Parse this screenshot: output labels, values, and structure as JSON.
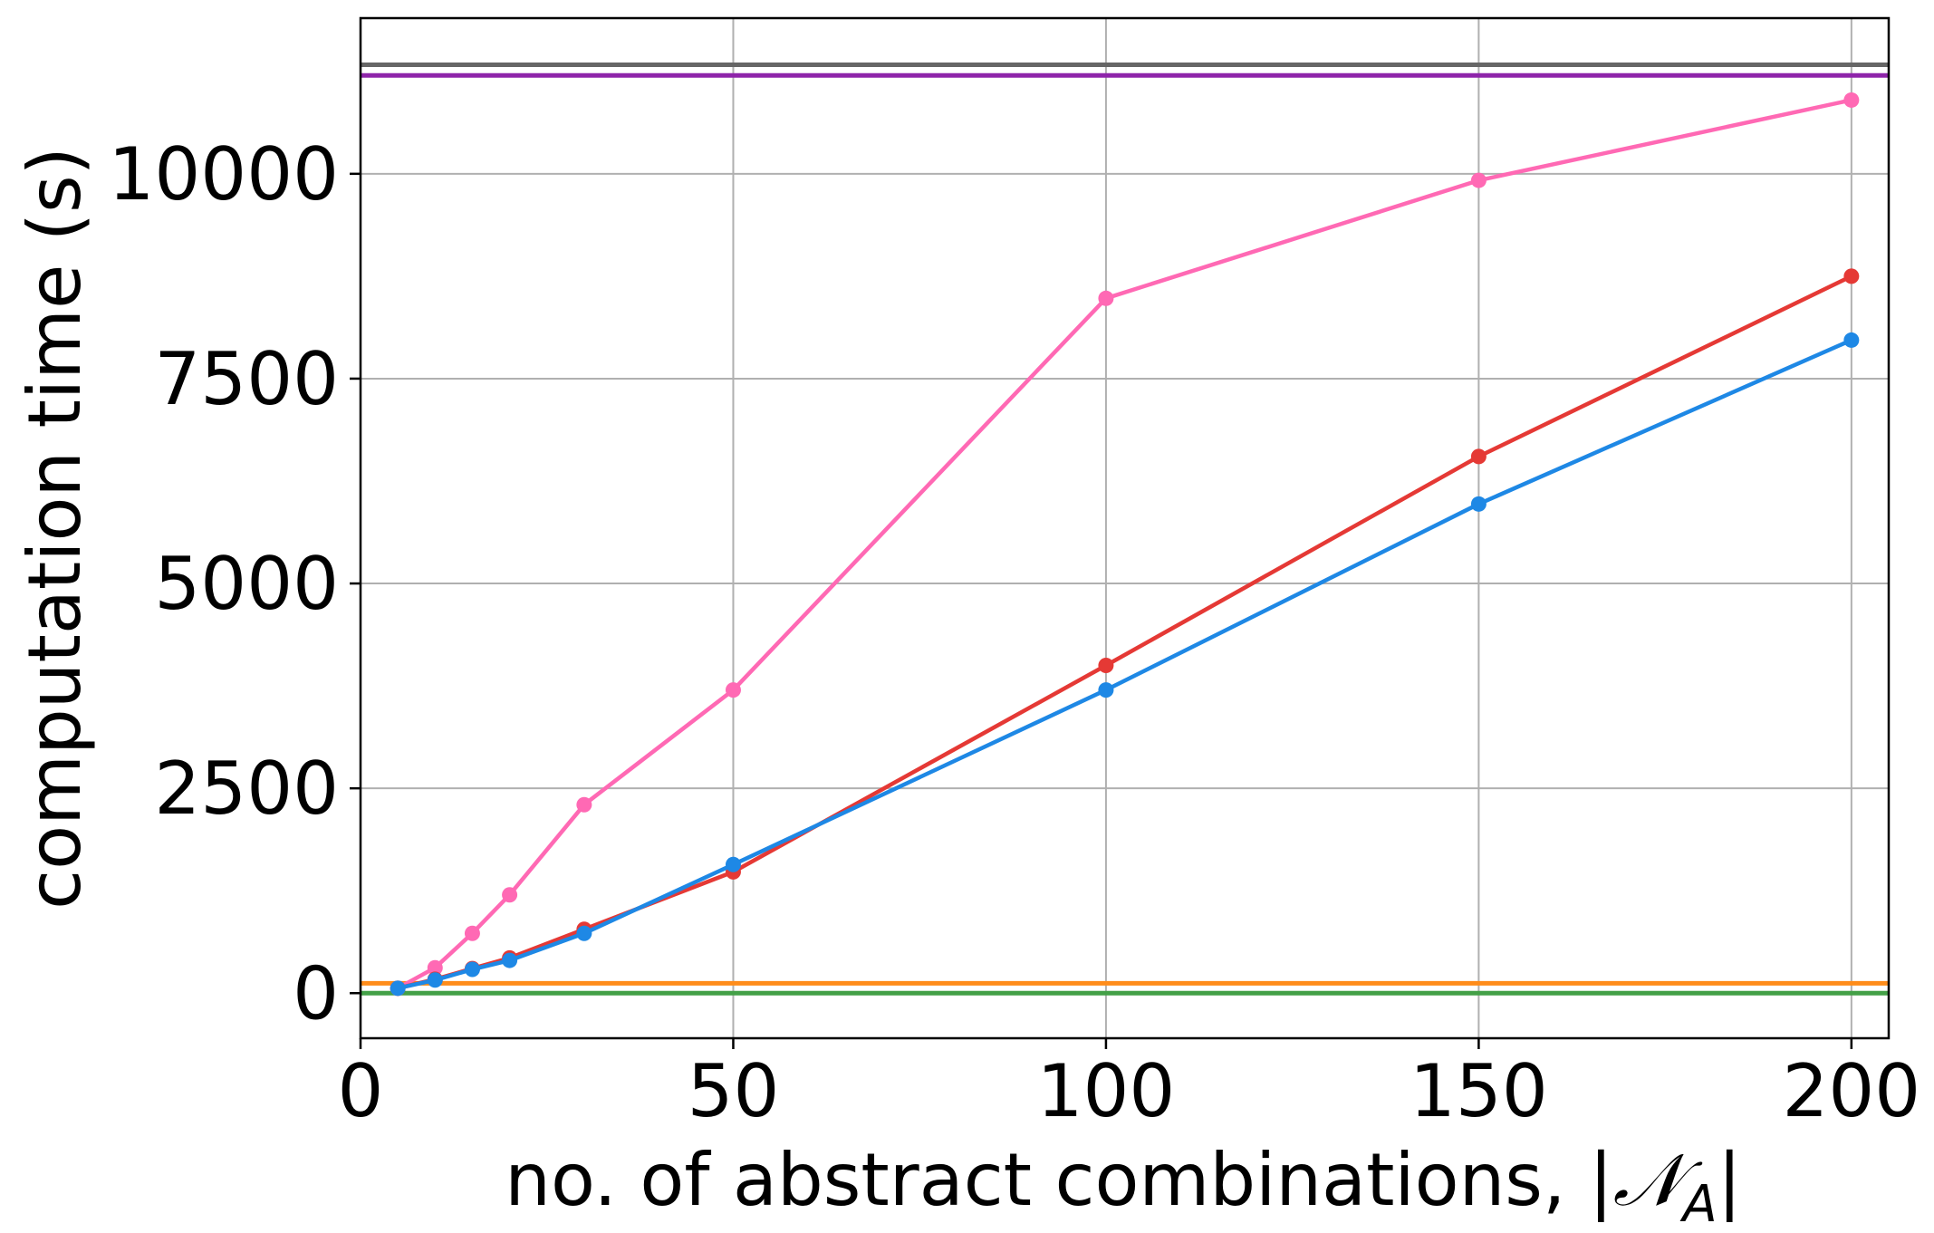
{
  "chart_data": {
    "type": "line",
    "xlabel": "no. of abstract combinations, |𝒩_A|",
    "xlabel_parts": {
      "prefix": "no. of abstract combinations, |",
      "symbol": "𝒩",
      "subscript": "A",
      "suffix": "|"
    },
    "ylabel": "computation time (s)",
    "xlim": [
      0,
      205
    ],
    "ylim": [
      -550,
      11900
    ],
    "xticks": [
      0,
      50,
      100,
      150,
      200
    ],
    "xtick_labels": [
      "0",
      "50",
      "100",
      "150",
      "200"
    ],
    "yticks": [
      0,
      2500,
      5000,
      7500,
      10000
    ],
    "ytick_labels": [
      "0",
      "2500",
      "5000",
      "7500",
      10000
    ],
    "grid": true,
    "series": [
      {
        "color": "#ff69b4",
        "x": [
          5,
          10,
          15,
          20,
          30,
          50,
          100,
          150,
          200
        ],
        "y": [
          60,
          310,
          730,
          1200,
          2300,
          3700,
          8480,
          9920,
          10900
        ]
      },
      {
        "color": "#e53935",
        "x": [
          5,
          10,
          15,
          20,
          30,
          50,
          100,
          150,
          200
        ],
        "y": [
          60,
          170,
          300,
          430,
          780,
          1480,
          4000,
          6550,
          8750
        ]
      },
      {
        "color": "#1e88e5",
        "x": [
          5,
          10,
          15,
          20,
          30,
          50,
          100,
          150,
          200
        ],
        "y": [
          60,
          160,
          290,
          400,
          730,
          1570,
          3700,
          5970,
          7970
        ]
      }
    ],
    "hlines": [
      {
        "color": "#666666",
        "y": 11330
      },
      {
        "color": "#8e24aa",
        "y": 11200
      },
      {
        "color": "#ff8c1a",
        "y": 120
      },
      {
        "color": "#43a047",
        "y": 0
      }
    ]
  }
}
